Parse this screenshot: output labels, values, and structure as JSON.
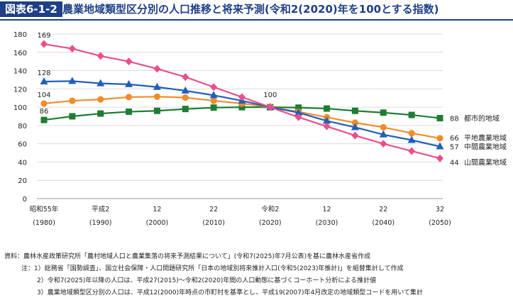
{
  "title": {
    "code": "図表6-1-2",
    "text": "農業地域類型区分別の人口推移と将来予測(令和2(2020)年を100とする指数)"
  },
  "chart_data": {
    "type": "line",
    "ylim": [
      0,
      180
    ],
    "yticks": [
      0,
      20,
      40,
      60,
      80,
      100,
      120,
      140,
      160,
      180
    ],
    "x": [
      1980,
      1985,
      1990,
      1995,
      2000,
      2005,
      2010,
      2015,
      2020,
      2025,
      2030,
      2035,
      2040,
      2045,
      2050
    ],
    "xtick_positions": [
      1980,
      1990,
      2000,
      2010,
      2020,
      2030,
      2040,
      2050
    ],
    "xtick_labels": [
      {
        "era": "昭和55年",
        "year": "(1980)"
      },
      {
        "era": "平成2",
        "year": "(1990)"
      },
      {
        "era": "12",
        "year": "(2000)"
      },
      {
        "era": "22",
        "year": "(2010)"
      },
      {
        "era": "令和2",
        "year": "(2020)"
      },
      {
        "era": "12",
        "year": "(2030)"
      },
      {
        "era": "22",
        "year": "(2040)"
      },
      {
        "era": "32",
        "year": "(2050)"
      }
    ],
    "grid": true,
    "series": [
      {
        "name": "都市的地域",
        "color": "#1e7d32",
        "marker": "square",
        "values": [
          86,
          90,
          93,
          95,
          96,
          98,
          99.5,
          100,
          100,
          99.5,
          98.5,
          96,
          94,
          91.5,
          88
        ],
        "start_label": "86",
        "end_label": "88"
      },
      {
        "name": "平地農業地域",
        "color": "#f08c2a",
        "marker": "circle",
        "values": [
          104,
          107,
          108.5,
          111,
          111.5,
          110.5,
          107,
          104,
          100,
          95,
          89,
          83,
          78,
          71.5,
          66
        ],
        "start_label": "104",
        "end_label": "66"
      },
      {
        "name": "中間農業地域",
        "color": "#1f5fb8",
        "marker": "triangle",
        "values": [
          128,
          128.5,
          126,
          125,
          122,
          118,
          113,
          107,
          100,
          94,
          85,
          78,
          70,
          64,
          57
        ],
        "start_label": "128",
        "end_label": "57"
      },
      {
        "name": "山間農業地域",
        "color": "#e8508a",
        "marker": "diamond",
        "values": [
          169,
          164,
          156,
          150,
          142,
          133,
          122,
          111,
          100,
          89,
          79,
          69,
          60,
          52,
          44
        ],
        "start_label": "169",
        "end_label": "44"
      }
    ],
    "annotations": [
      {
        "x": 2020,
        "y": 100,
        "text": "100"
      }
    ]
  },
  "notes": {
    "source": "資料：農林水産政策研究所「農村地域人口と農業集落の将来予測結果について」(令和7(2025)年7月公表)を基に農林水産省作成",
    "note1": "注：1）総務省「国勢調査」、国立社会保障・人口問題研究所「日本の地域別将来推計人口(令和5(2023)年推計)」を組替集計して作成",
    "note2": "2）令和7(2025)年以降の人口は、平成27(2015)〜令和2(2020)年間の人口動態に基づくコーホート分析による推計値",
    "note3": "3）農業地域類型区分別の人口は、平成12(2000)年時点の市町村を基準とし、平成19(2007)年4月改定の地域類型コードを用いて集計"
  }
}
